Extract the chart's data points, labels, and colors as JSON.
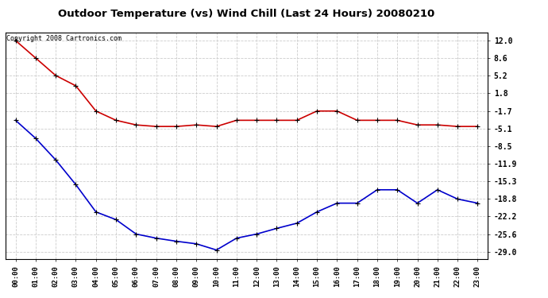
{
  "title": "Outdoor Temperature (vs) Wind Chill (Last 24 Hours) 20080210",
  "copyright": "Copyright 2008 Cartronics.com",
  "hours": [
    "00:00",
    "01:00",
    "02:00",
    "03:00",
    "04:00",
    "05:00",
    "06:00",
    "07:00",
    "08:00",
    "09:00",
    "10:00",
    "11:00",
    "12:00",
    "13:00",
    "14:00",
    "15:00",
    "16:00",
    "17:00",
    "18:00",
    "19:00",
    "20:00",
    "21:00",
    "22:00",
    "23:00"
  ],
  "temp": [
    12.0,
    8.6,
    5.2,
    3.2,
    -1.7,
    -3.5,
    -4.4,
    -4.7,
    -4.7,
    -4.4,
    -4.7,
    -3.5,
    -3.5,
    -3.5,
    -3.5,
    -1.7,
    -1.7,
    -3.5,
    -3.5,
    -3.5,
    -4.4,
    -4.4,
    -4.7,
    -4.7
  ],
  "wind_chill": [
    -3.5,
    -7.0,
    -11.2,
    -16.0,
    -21.3,
    -22.8,
    -25.6,
    -26.4,
    -27.0,
    -27.5,
    -28.7,
    -26.4,
    -25.6,
    -24.5,
    -23.5,
    -21.3,
    -19.6,
    -19.6,
    -17.0,
    -17.0,
    -19.6,
    -17.0,
    -18.8,
    -19.6
  ],
  "temp_color": "#cc0000",
  "wind_chill_color": "#0000cc",
  "bg_color": "#ffffff",
  "plot_bg_color": "#ffffff",
  "grid_color": "#cccccc",
  "yticks": [
    12.0,
    8.6,
    5.2,
    1.8,
    -1.7,
    -5.1,
    -8.5,
    -11.9,
    -15.3,
    -18.8,
    -22.2,
    -25.6,
    -29.0
  ],
  "marker": "+",
  "marker_size": 5,
  "linewidth": 1.2
}
